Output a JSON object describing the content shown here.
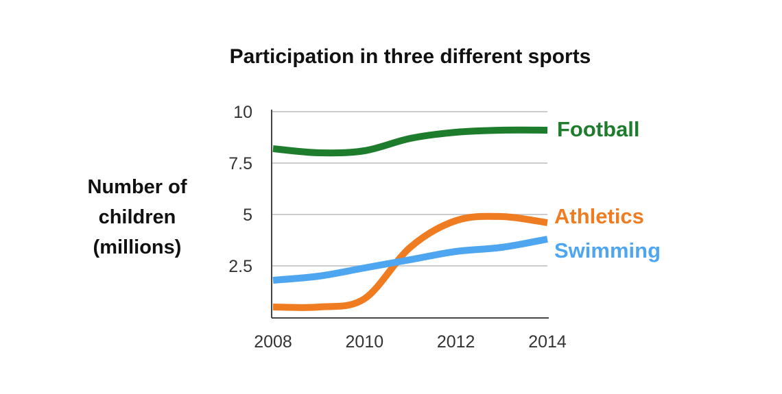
{
  "chart_data": {
    "type": "line",
    "title": "Participation in three different sports",
    "ylabel": [
      "Number of",
      "children",
      "(millions)"
    ],
    "xlabel": "",
    "x": [
      2008,
      2009,
      2010,
      2011,
      2012,
      2013,
      2014
    ],
    "x_ticks": [
      "2008",
      "2010",
      "2012",
      "2014"
    ],
    "y_ticks": [
      "2.5",
      "5",
      "7.5",
      "10"
    ],
    "ylim": [
      0,
      10
    ],
    "xlim": [
      2008,
      2014
    ],
    "grid": "horizontal",
    "legend": "inline labels at right end of lines",
    "series": [
      {
        "name": "Football",
        "color": "#1e7d2c",
        "values": [
          8.2,
          8.0,
          8.1,
          8.7,
          9.0,
          9.1,
          9.1
        ]
      },
      {
        "name": "Athletics",
        "color": "#f07c22",
        "values": [
          0.5,
          0.5,
          0.9,
          3.4,
          4.7,
          4.9,
          4.6
        ]
      },
      {
        "name": "Swimming",
        "color": "#4ea6f0",
        "values": [
          1.8,
          2.0,
          2.4,
          2.8,
          3.2,
          3.4,
          3.8
        ]
      }
    ]
  }
}
